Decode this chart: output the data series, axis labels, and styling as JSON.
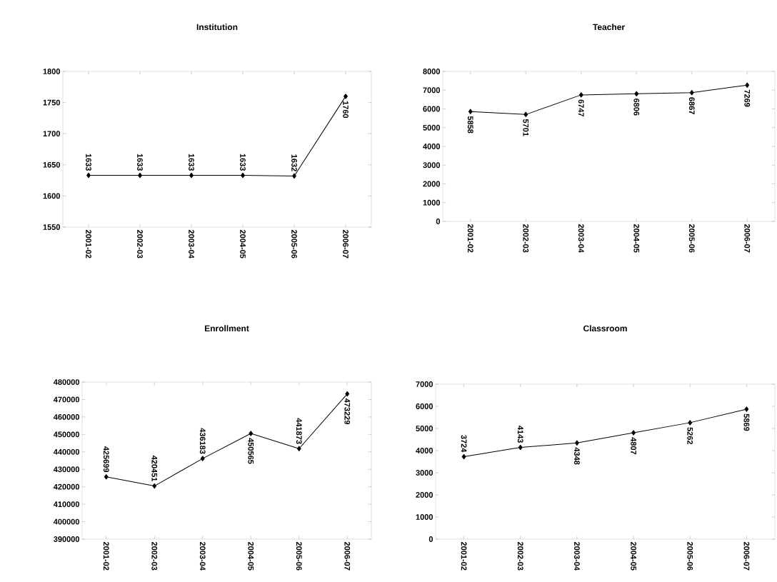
{
  "chart_data": [
    {
      "type": "line",
      "title": "Institution",
      "categories": [
        "2001-02",
        "2002-03",
        "2003-04",
        "2004-05",
        "2005-06",
        "2006-07"
      ],
      "values": [
        1633,
        1633,
        1633,
        1633,
        1632,
        1760
      ],
      "color": "#000000",
      "marker": "diamond",
      "data_labels": true,
      "ylim": [
        1550,
        1800
      ],
      "yticks": [
        1550,
        1600,
        1650,
        1700,
        1750,
        1800
      ]
    },
    {
      "type": "line",
      "title": "Teacher",
      "categories": [
        "2001-02",
        "2002-03",
        "2003-04",
        "2004-05",
        "2005-06",
        "2006-07"
      ],
      "values": [
        5858,
        5701,
        6747,
        6806,
        6867,
        7269
      ],
      "color": "#000000",
      "marker": "diamond",
      "data_labels": true,
      "ylim": [
        0,
        8000
      ],
      "yticks": [
        0,
        1000,
        2000,
        3000,
        4000,
        5000,
        6000,
        7000,
        8000
      ]
    },
    {
      "type": "line",
      "title": "Enrollment",
      "categories": [
        "2001-02",
        "2002-03",
        "2003-04",
        "2004-05",
        "2005-06",
        "2006-07"
      ],
      "values": [
        425699,
        420451,
        436183,
        450565,
        441873,
        473229
      ],
      "color": "#000000",
      "marker": "diamond",
      "data_labels": true,
      "ylim": [
        390000,
        480000
      ],
      "yticks": [
        390000,
        400000,
        410000,
        420000,
        430000,
        440000,
        450000,
        460000,
        470000,
        480000
      ]
    },
    {
      "type": "line",
      "title": "Classroom",
      "categories": [
        "2001-02",
        "2002-03",
        "2003-04",
        "2004-05",
        "2005-06",
        "2006-07"
      ],
      "values": [
        3724,
        4143,
        4348,
        4807,
        5262,
        5869
      ],
      "color": "#000000",
      "marker": "diamond",
      "data_labels": true,
      "ylim": [
        0,
        7000
      ],
      "yticks": [
        0,
        1000,
        2000,
        3000,
        4000,
        5000,
        6000,
        7000
      ]
    }
  ]
}
